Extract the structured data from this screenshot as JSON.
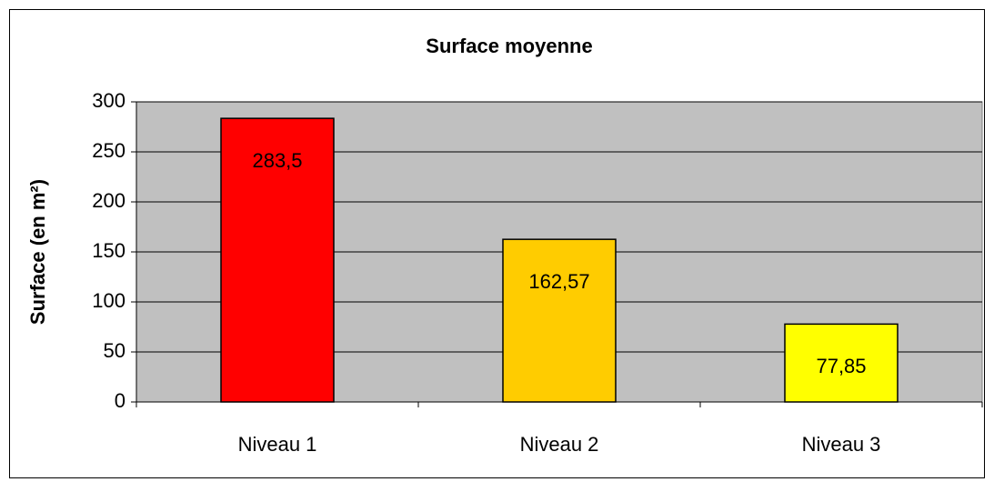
{
  "chart_data": {
    "type": "bar",
    "title": "Surface moyenne",
    "y_label": "Surface (en m²)",
    "categories": [
      "Niveau 1",
      "Niveau 2",
      "Niveau 3"
    ],
    "values": [
      283.5,
      162.57,
      77.85
    ],
    "value_labels": [
      "283,5",
      "162,57",
      "77,85"
    ],
    "colors": [
      "#ff0000",
      "#ffcc00",
      "#ffff00"
    ],
    "ylim": [
      0,
      300
    ],
    "yticks": [
      0,
      50,
      100,
      150,
      200,
      250,
      300
    ],
    "grid": true
  }
}
